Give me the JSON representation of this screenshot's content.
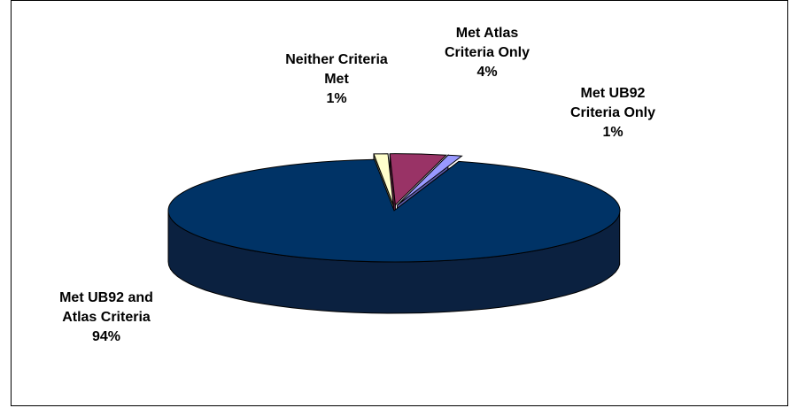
{
  "chart_data": {
    "type": "pie",
    "style": "3d-exploded",
    "slices": [
      {
        "label_lines": [
          "Met UB92 and",
          "Atlas Criteria"
        ],
        "percent_label": "94%",
        "value": 94,
        "color": "#003366",
        "side_color": "#0b2140"
      },
      {
        "label_lines": [
          "Neither Criteria",
          "Met"
        ],
        "percent_label": "1%",
        "value": 1,
        "color": "#9999ff",
        "side_color": "#5a5aa8"
      },
      {
        "label_lines": [
          "Met Atlas",
          "Criteria Only"
        ],
        "percent_label": "4%",
        "value": 4,
        "color": "#993366",
        "side_color": "#5c1e3c"
      },
      {
        "label_lines": [
          "Met UB92",
          "Criteria Only"
        ],
        "percent_label": "1%",
        "value": 1,
        "color": "#ffffcc",
        "side_color": "#8a8a6a"
      }
    ],
    "legend": "none",
    "title": ""
  }
}
